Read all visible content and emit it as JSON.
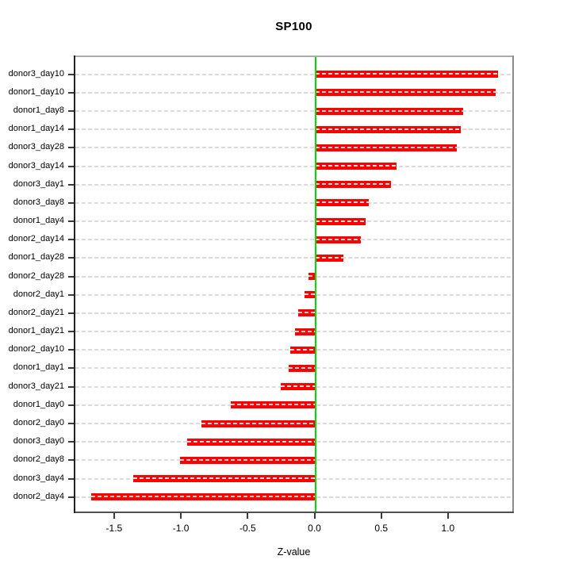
{
  "chart_data": {
    "type": "bar",
    "orientation": "horizontal",
    "title": "SP100",
    "xlabel": "Z-value",
    "ylabel": "",
    "categories": [
      "donor3_day10",
      "donor1_day10",
      "donor1_day8",
      "donor1_day14",
      "donor3_day28",
      "donor3_day14",
      "donor3_day1",
      "donor3_day8",
      "donor1_day4",
      "donor2_day14",
      "donor1_day28",
      "donor2_day28",
      "donor2_day1",
      "donor2_day21",
      "donor1_day21",
      "donor2_day10",
      "donor1_day1",
      "donor3_day21",
      "donor1_day0",
      "donor2_day0",
      "donor3_day0",
      "donor2_day8",
      "donor3_day4",
      "donor2_day4"
    ],
    "values": [
      1.37,
      1.35,
      1.11,
      1.09,
      1.06,
      0.61,
      0.57,
      0.4,
      0.38,
      0.34,
      0.21,
      -0.05,
      -0.08,
      -0.13,
      -0.15,
      -0.19,
      -0.2,
      -0.26,
      -0.63,
      -0.85,
      -0.96,
      -1.01,
      -1.36,
      -1.68
    ],
    "x_ticks": [
      -1.5,
      -1.0,
      -0.5,
      0.0,
      0.5,
      1.0
    ],
    "x_tick_labels": [
      "-1.5",
      "-1.0",
      "-0.5",
      "0.0",
      "0.5",
      "1.0"
    ],
    "xlim": [
      -1.8,
      1.5
    ],
    "grid": true,
    "legend": null,
    "colors": {
      "bar": "#ff0000",
      "zero_line": "#00dd00",
      "gridline": "#dcdcdc",
      "axis": "#3a3a3a"
    }
  }
}
